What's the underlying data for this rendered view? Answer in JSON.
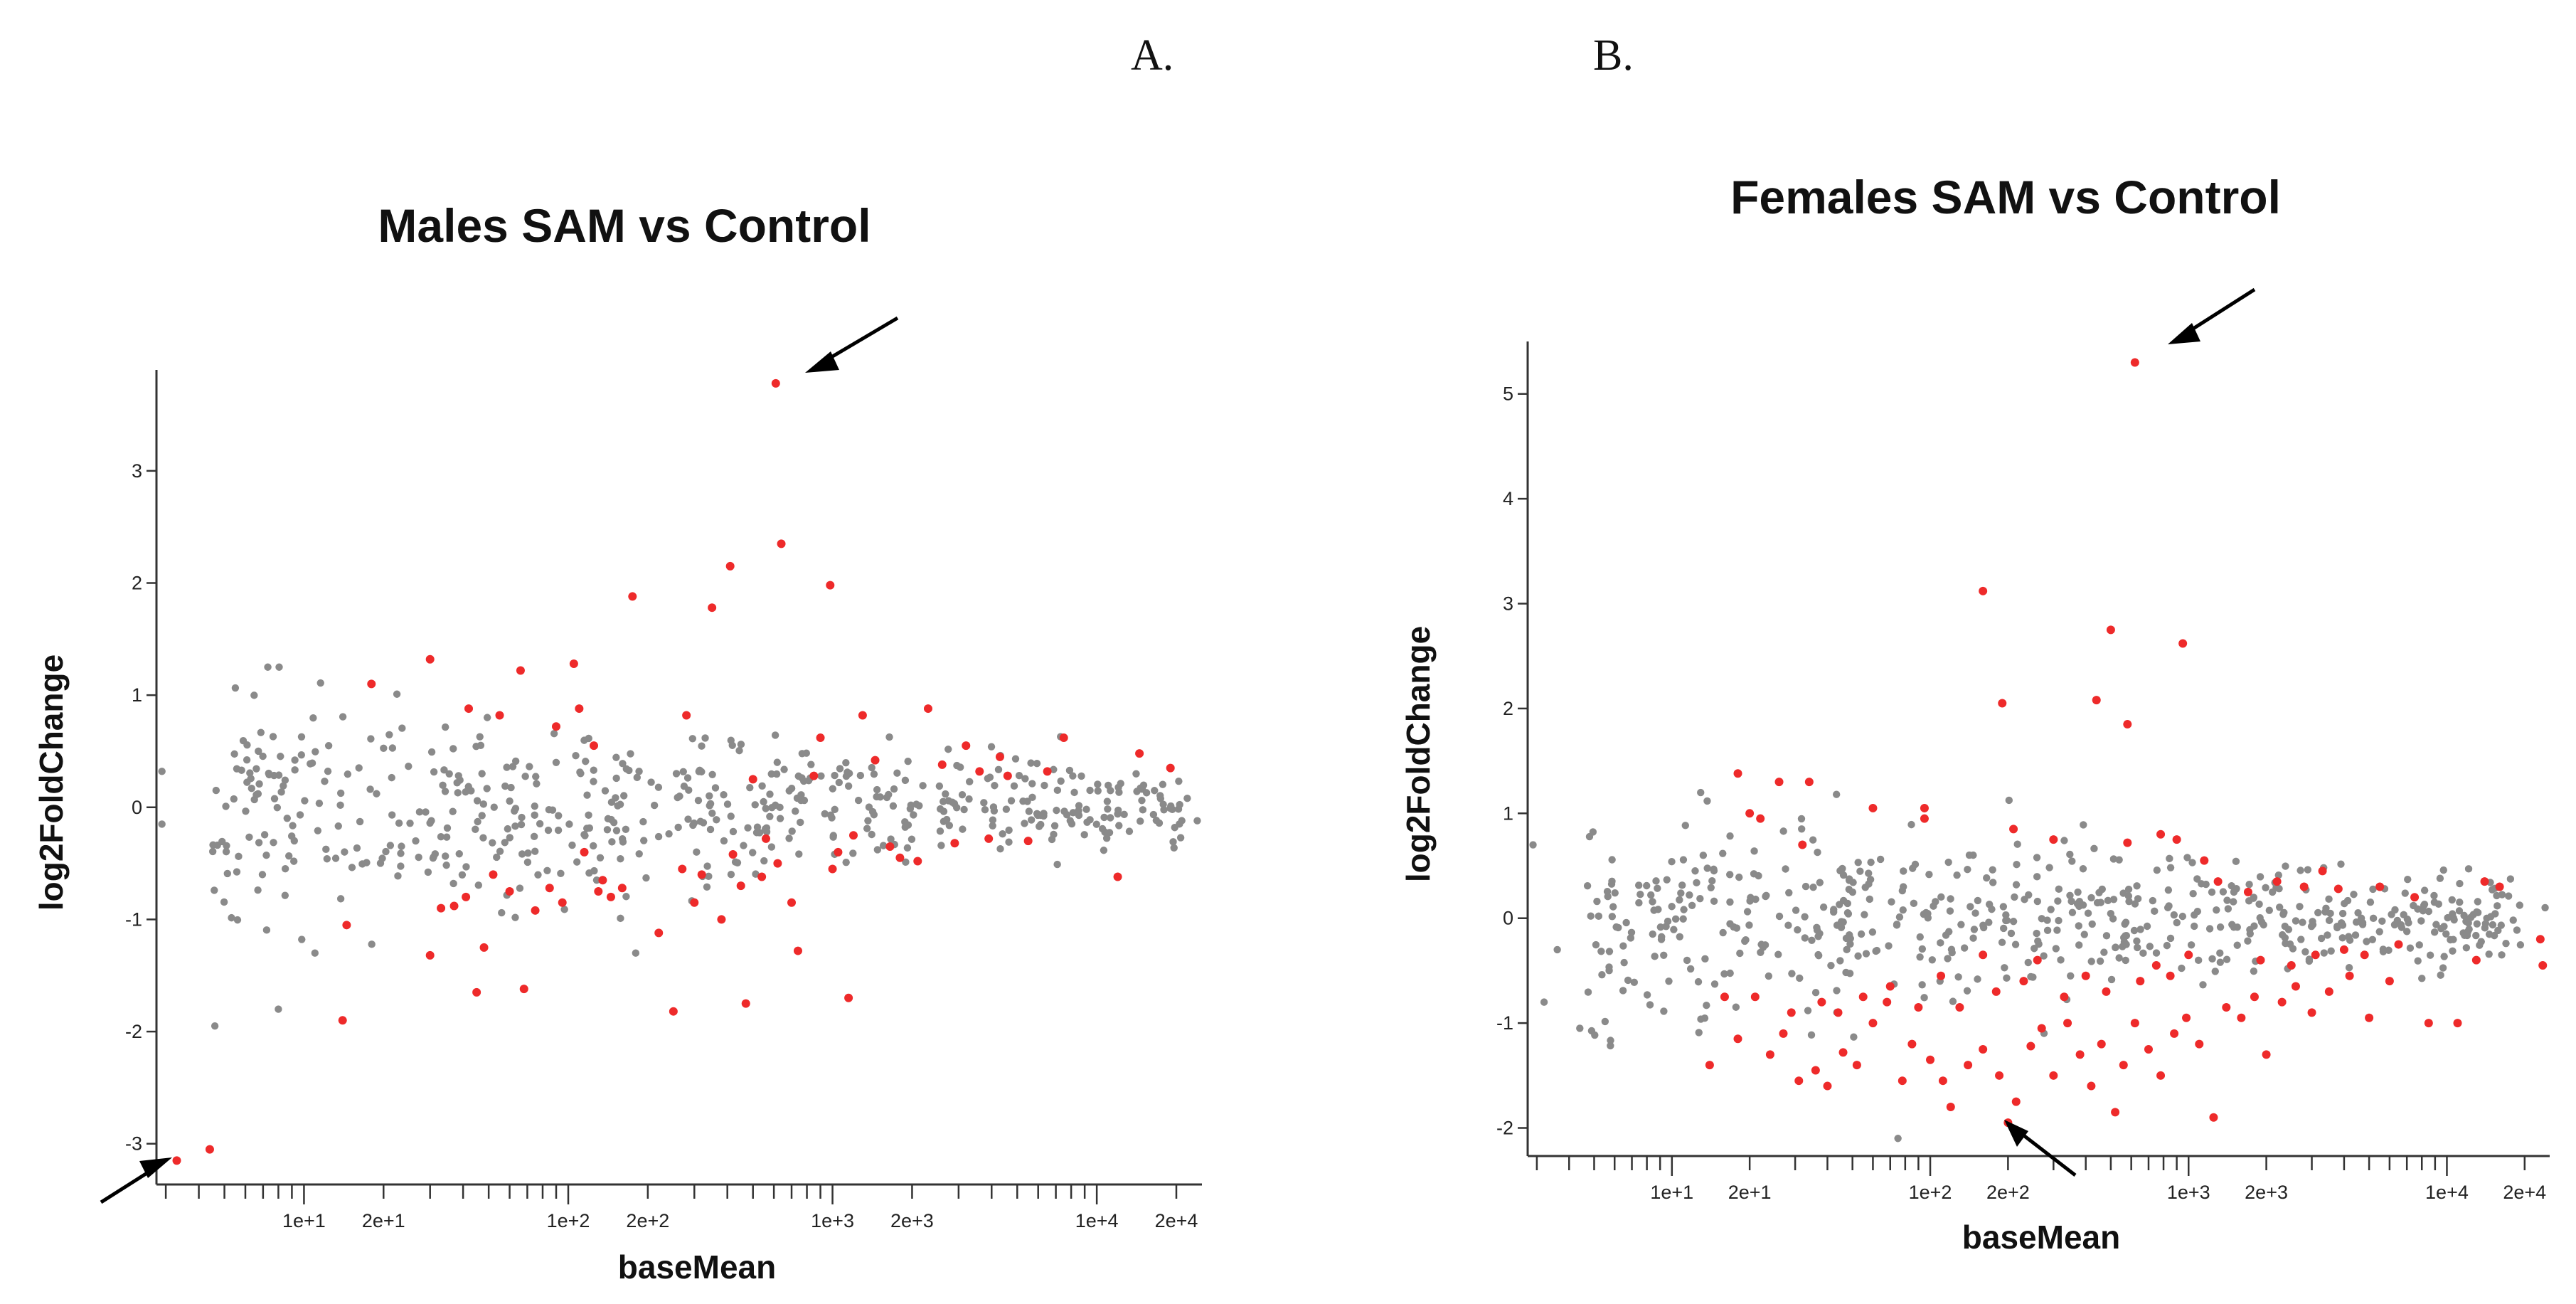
{
  "panel_labels": [
    "A.",
    "B."
  ],
  "colors": {
    "sig": "#ee2a2a",
    "nonsig": "#8a8a8a",
    "axis": "#333333"
  },
  "chart_data": [
    {
      "type": "scatter",
      "title": "Males SAM vs Control",
      "xlabel": "baseMean",
      "ylabel": "log2FoldChange",
      "xscale": "log",
      "xlim": [
        2.8,
        25000
      ],
      "ylim": [
        -3.3,
        3.9
      ],
      "yticks": [
        -3,
        -2,
        -1,
        0,
        1,
        2,
        3
      ],
      "xtick_labels": [
        {
          "value": 10,
          "label": "1e+1"
        },
        {
          "value": 20,
          "label": "2e+1"
        },
        {
          "value": 100,
          "label": "1e+2"
        },
        {
          "value": 200,
          "label": "2e+2"
        },
        {
          "value": 1000,
          "label": "1e+3"
        },
        {
          "value": 2000,
          "label": "2e+3"
        },
        {
          "value": 10000,
          "label": "1e+4"
        },
        {
          "value": 20000,
          "label": "2e+4"
        }
      ],
      "significant_points": [
        [
          3.3,
          -3.15
        ],
        [
          4.4,
          -3.05
        ],
        [
          14,
          -1.9
        ],
        [
          14.5,
          -1.05
        ],
        [
          18,
          1.1
        ],
        [
          30,
          1.32
        ],
        [
          30,
          -1.32
        ],
        [
          37,
          -0.88
        ],
        [
          42,
          0.88
        ],
        [
          45,
          -1.65
        ],
        [
          48,
          -1.25
        ],
        [
          55,
          0.82
        ],
        [
          66,
          1.22
        ],
        [
          68,
          -1.62
        ],
        [
          60,
          -0.75
        ],
        [
          75,
          -0.92
        ],
        [
          90,
          0.72
        ],
        [
          105,
          1.28
        ],
        [
          110,
          0.88
        ],
        [
          125,
          0.55
        ],
        [
          175,
          1.88
        ],
        [
          160,
          -0.72
        ],
        [
          220,
          -1.12
        ],
        [
          250,
          -1.82
        ],
        [
          280,
          0.82
        ],
        [
          350,
          1.78
        ],
        [
          410,
          2.15
        ],
        [
          470,
          -1.75
        ],
        [
          610,
          3.78
        ],
        [
          640,
          2.35
        ],
        [
          740,
          -1.28
        ],
        [
          980,
          1.98
        ],
        [
          1150,
          -1.7
        ],
        [
          850,
          0.28
        ],
        [
          1300,
          0.82
        ],
        [
          2300,
          0.88
        ],
        [
          3200,
          0.55
        ],
        [
          4300,
          0.45
        ],
        [
          7500,
          0.62
        ],
        [
          12000,
          -0.62
        ],
        [
          14500,
          0.48
        ],
        [
          19000,
          0.35
        ],
        [
          85,
          -0.72
        ],
        [
          95,
          -0.85
        ],
        [
          130,
          -0.75
        ],
        [
          145,
          -0.8
        ],
        [
          270,
          -0.55
        ],
        [
          300,
          -0.85
        ],
        [
          320,
          -0.6
        ],
        [
          380,
          -1.0
        ],
        [
          450,
          -0.7
        ],
        [
          540,
          -0.62
        ],
        [
          620,
          -0.5
        ],
        [
          700,
          -0.85
        ],
        [
          900,
          0.62
        ],
        [
          1050,
          -0.4
        ],
        [
          1450,
          0.42
        ],
        [
          1650,
          -0.35
        ],
        [
          1800,
          -0.45
        ],
        [
          2100,
          -0.48
        ],
        [
          2600,
          0.38
        ],
        [
          2900,
          -0.32
        ],
        [
          3600,
          0.32
        ],
        [
          4600,
          0.28
        ],
        [
          5500,
          -0.3
        ],
        [
          6500,
          0.32
        ],
        [
          1000,
          -0.55
        ],
        [
          1200,
          -0.25
        ],
        [
          500,
          0.25
        ],
        [
          560,
          -0.28
        ],
        [
          420,
          -0.42
        ],
        [
          3900,
          -0.28
        ],
        [
          33,
          -0.9
        ],
        [
          41,
          -0.8
        ],
        [
          52,
          -0.6
        ],
        [
          115,
          -0.4
        ],
        [
          135,
          -0.65
        ]
      ]
    },
    {
      "type": "scatter",
      "title": "Females SAM vs Control",
      "xlabel": "baseMean",
      "ylabel": "log2FoldChange",
      "xscale": "log",
      "xlim": [
        2.8,
        25000
      ],
      "ylim": [
        -2.2,
        5.5
      ],
      "yticks": [
        -2,
        -1,
        0,
        1,
        2,
        3,
        4,
        5
      ],
      "xtick_labels": [
        {
          "value": 10,
          "label": "1e+1"
        },
        {
          "value": 20,
          "label": "2e+1"
        },
        {
          "value": 100,
          "label": "1e+2"
        },
        {
          "value": 200,
          "label": "2e+2"
        },
        {
          "value": 1000,
          "label": "1e+3"
        },
        {
          "value": 2000,
          "label": "2e+3"
        },
        {
          "value": 10000,
          "label": "1e+4"
        },
        {
          "value": 20000,
          "label": "2e+4"
        }
      ],
      "significant_points": [
        [
          620,
          5.3
        ],
        [
          160,
          3.12
        ],
        [
          500,
          2.75
        ],
        [
          950,
          2.62
        ],
        [
          440,
          2.08
        ],
        [
          190,
          2.05
        ],
        [
          580,
          1.85
        ],
        [
          18,
          1.38
        ],
        [
          26,
          1.3
        ],
        [
          20,
          1.0
        ],
        [
          22,
          0.95
        ],
        [
          34,
          1.3
        ],
        [
          32,
          0.7
        ],
        [
          60,
          1.05
        ],
        [
          95,
          1.05
        ],
        [
          95,
          0.95
        ],
        [
          210,
          0.85
        ],
        [
          300,
          0.75
        ],
        [
          580,
          0.72
        ],
        [
          780,
          0.8
        ],
        [
          900,
          0.75
        ],
        [
          1150,
          0.55
        ],
        [
          14,
          -1.4
        ],
        [
          18,
          -1.15
        ],
        [
          24,
          -1.3
        ],
        [
          27,
          -1.1
        ],
        [
          31,
          -1.55
        ],
        [
          36,
          -1.45
        ],
        [
          40,
          -1.6
        ],
        [
          46,
          -1.28
        ],
        [
          52,
          -1.4
        ],
        [
          60,
          -1.0
        ],
        [
          68,
          -0.8
        ],
        [
          78,
          -1.55
        ],
        [
          85,
          -1.2
        ],
        [
          100,
          -1.35
        ],
        [
          112,
          -1.55
        ],
        [
          120,
          -1.8
        ],
        [
          140,
          -1.4
        ],
        [
          160,
          -1.25
        ],
        [
          185,
          -1.5
        ],
        [
          200,
          -1.95
        ],
        [
          215,
          -1.75
        ],
        [
          245,
          -1.22
        ],
        [
          270,
          -1.05
        ],
        [
          300,
          -1.5
        ],
        [
          340,
          -1.0
        ],
        [
          380,
          -1.3
        ],
        [
          420,
          -1.6
        ],
        [
          460,
          -1.2
        ],
        [
          520,
          -1.85
        ],
        [
          560,
          -1.4
        ],
        [
          620,
          -1.0
        ],
        [
          700,
          -1.25
        ],
        [
          780,
          -1.5
        ],
        [
          880,
          -1.1
        ],
        [
          980,
          -0.95
        ],
        [
          1100,
          -1.2
        ],
        [
          1250,
          -1.9
        ],
        [
          1400,
          -0.85
        ],
        [
          1600,
          -0.95
        ],
        [
          1800,
          -0.75
        ],
        [
          2000,
          -1.3
        ],
        [
          2300,
          -0.8
        ],
        [
          2600,
          -0.65
        ],
        [
          3000,
          -0.9
        ],
        [
          3500,
          -0.7
        ],
        [
          4200,
          -0.55
        ],
        [
          5000,
          -0.95
        ],
        [
          6000,
          -0.6
        ],
        [
          8500,
          -1.0
        ],
        [
          11000,
          -1.0
        ],
        [
          13000,
          -0.4
        ],
        [
          14000,
          0.35
        ],
        [
          16000,
          0.3
        ],
        [
          23000,
          -0.2
        ],
        [
          23500,
          -0.45
        ],
        [
          2200,
          0.35
        ],
        [
          2800,
          0.3
        ],
        [
          3300,
          0.45
        ],
        [
          3800,
          0.28
        ],
        [
          1300,
          0.35
        ],
        [
          1700,
          0.25
        ],
        [
          160,
          -0.35
        ],
        [
          180,
          -0.7
        ],
        [
          230,
          -0.6
        ],
        [
          260,
          -0.4
        ],
        [
          330,
          -0.75
        ],
        [
          400,
          -0.55
        ],
        [
          480,
          -0.7
        ],
        [
          650,
          -0.6
        ],
        [
          750,
          -0.45
        ],
        [
          850,
          -0.55
        ],
        [
          1000,
          -0.35
        ],
        [
          110,
          -0.55
        ],
        [
          130,
          -0.85
        ],
        [
          90,
          -0.85
        ],
        [
          70,
          -0.65
        ],
        [
          55,
          -0.75
        ],
        [
          44,
          -0.9
        ],
        [
          38,
          -0.8
        ],
        [
          29,
          -0.9
        ],
        [
          21,
          -0.75
        ],
        [
          16,
          -0.75
        ],
        [
          1900,
          -0.4
        ],
        [
          2500,
          -0.45
        ],
        [
          3100,
          -0.35
        ],
        [
          4000,
          -0.3
        ],
        [
          4800,
          -0.35
        ],
        [
          5500,
          0.3
        ],
        [
          6500,
          -0.25
        ],
        [
          7500,
          0.2
        ]
      ]
    }
  ]
}
